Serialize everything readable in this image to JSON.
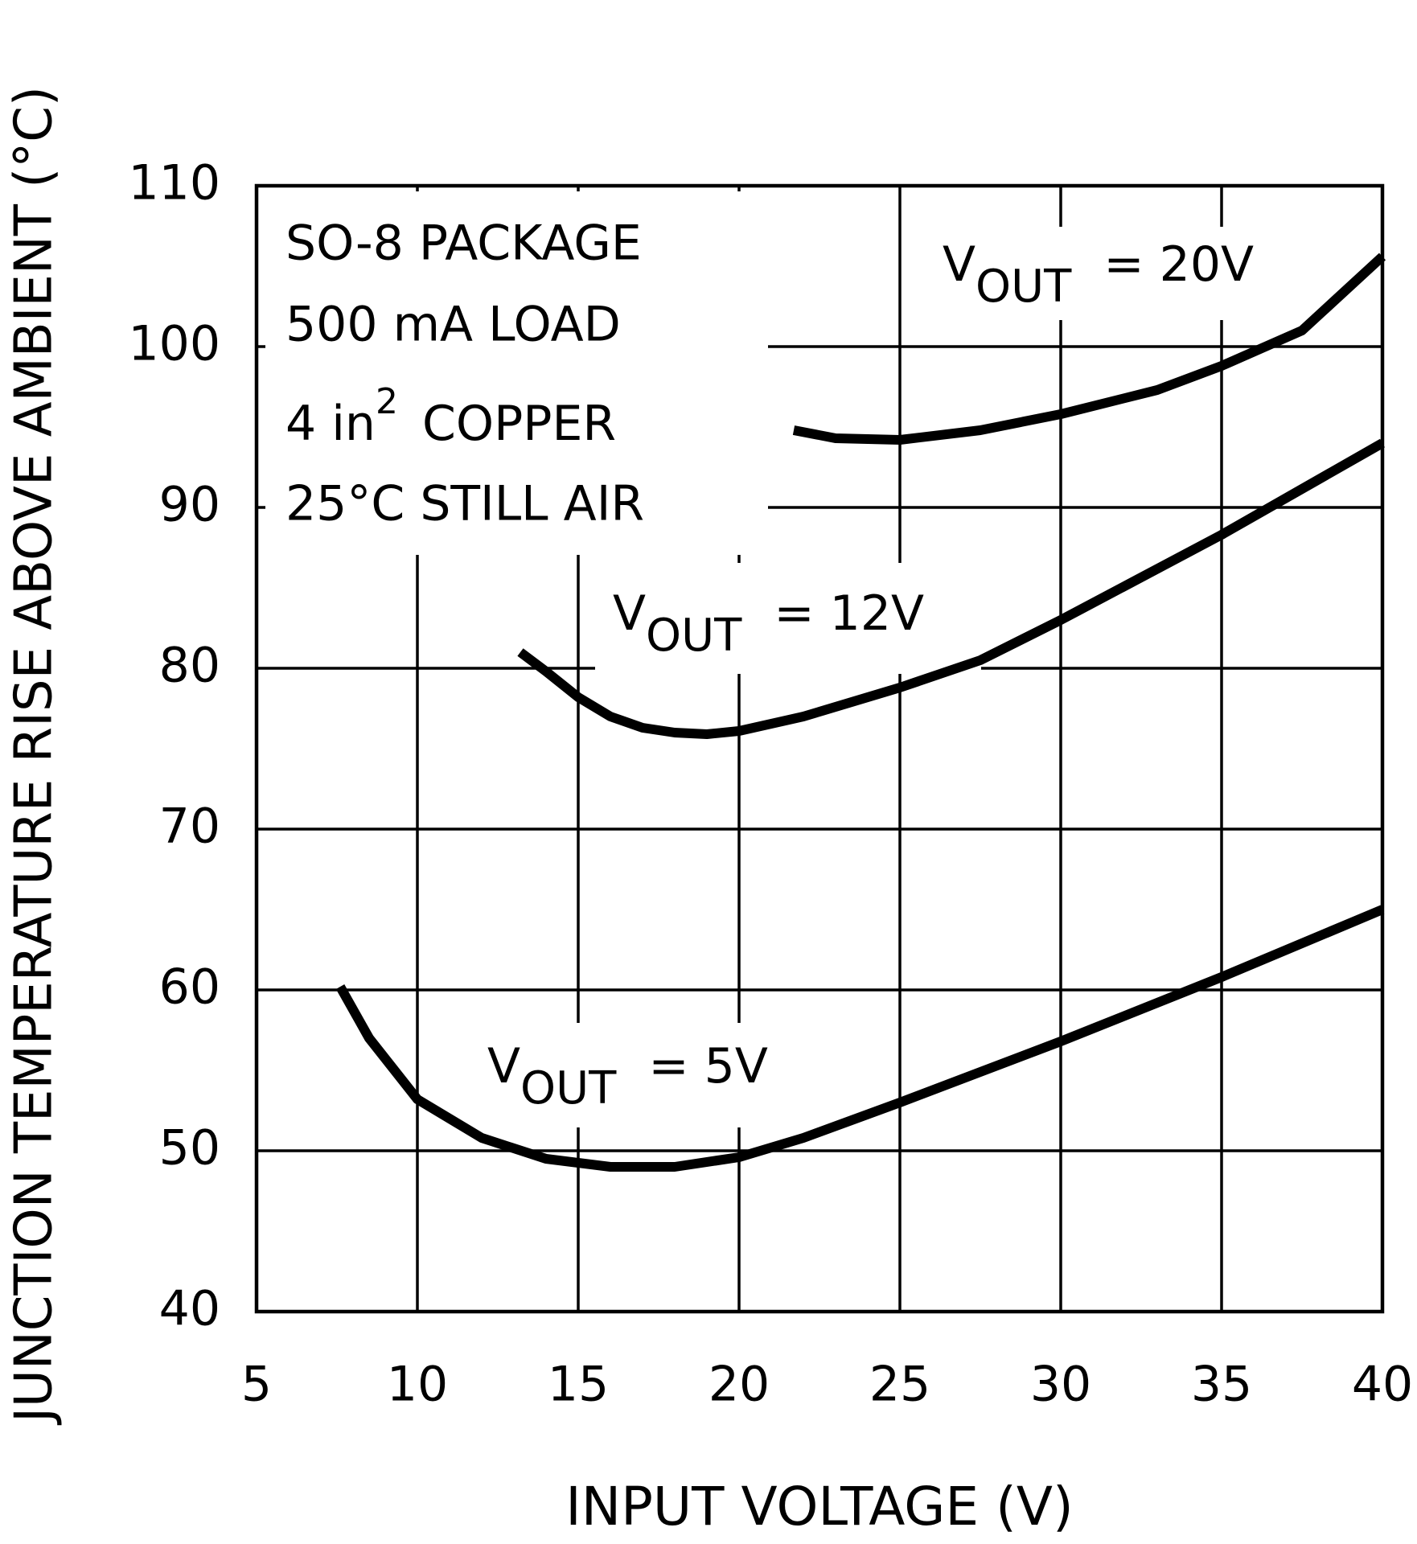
{
  "chart_data": {
    "type": "line",
    "x_label": "INPUT VOLTAGE (V)",
    "y_label": "JUNCTION TEMPERATURE RISE ABOVE AMBIENT (°C)",
    "xlim": [
      5,
      40
    ],
    "xticks": [
      5,
      10,
      15,
      20,
      25,
      30,
      35,
      40
    ],
    "ylim": [
      40,
      110
    ],
    "yticks": [
      40,
      50,
      60,
      70,
      80,
      90,
      100,
      110
    ],
    "grid": true,
    "color": "#000000",
    "annotations": [
      "SO-8 PACKAGE",
      "500 mA LOAD",
      {
        "base": "4 in",
        "sup": "2",
        "rest": "COPPER"
      },
      "25°C STILL AIR"
    ],
    "series": [
      {
        "name": [
          "V",
          "OUT",
          "= 20V"
        ],
        "color": "#000000",
        "x": [
          21.7,
          23,
          25,
          27.5,
          30,
          33,
          35,
          37.5,
          40
        ],
        "values": [
          94.8,
          94.3,
          94.2,
          94.8,
          95.8,
          97.3,
          98.8,
          101,
          105.6
        ]
      },
      {
        "name": [
          "V",
          "OUT",
          "= 12V"
        ],
        "color": "#000000",
        "x": [
          13.2,
          14,
          15,
          16,
          17,
          18,
          19,
          20,
          22,
          25,
          27.5,
          30,
          35,
          40
        ],
        "values": [
          81,
          79.8,
          78.2,
          77,
          76.3,
          76,
          75.9,
          76.1,
          77,
          78.8,
          80.5,
          83,
          88.3,
          94
        ]
      },
      {
        "name": [
          "V",
          "OUT",
          "= 5V"
        ],
        "color": "#000000",
        "x": [
          7.6,
          8.5,
          10,
          12,
          14,
          16,
          18,
          20,
          22,
          25,
          30,
          35,
          40
        ],
        "values": [
          60.2,
          57,
          53.2,
          50.8,
          49.5,
          49,
          49,
          49.6,
          50.8,
          53,
          56.8,
          60.8,
          65
        ]
      }
    ]
  }
}
